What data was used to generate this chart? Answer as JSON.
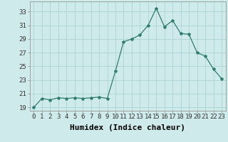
{
  "x": [
    0,
    1,
    2,
    3,
    4,
    5,
    6,
    7,
    8,
    9,
    10,
    11,
    12,
    13,
    14,
    15,
    16,
    17,
    18,
    19,
    20,
    21,
    22,
    23
  ],
  "y": [
    19.0,
    20.3,
    20.1,
    20.4,
    20.3,
    20.4,
    20.3,
    20.4,
    20.5,
    20.3,
    24.3,
    28.6,
    29.0,
    29.6,
    31.0,
    33.5,
    30.8,
    31.7,
    29.8,
    29.7,
    27.0,
    26.5,
    24.6,
    23.2
  ],
  "line_color": "#2e7d6e",
  "marker": "*",
  "marker_size": 3,
  "bg_color": "#ceeaea",
  "grid_color": "#a8d0d0",
  "xlabel": "Humidex (Indice chaleur)",
  "xlim": [
    -0.5,
    23.5
  ],
  "ylim": [
    18.5,
    34.5
  ],
  "yticks": [
    19,
    21,
    23,
    25,
    27,
    29,
    31,
    33
  ],
  "xticks": [
    0,
    1,
    2,
    3,
    4,
    5,
    6,
    7,
    8,
    9,
    10,
    11,
    12,
    13,
    14,
    15,
    16,
    17,
    18,
    19,
    20,
    21,
    22,
    23
  ],
  "tick_fontsize": 6.5,
  "xlabel_fontsize": 8
}
